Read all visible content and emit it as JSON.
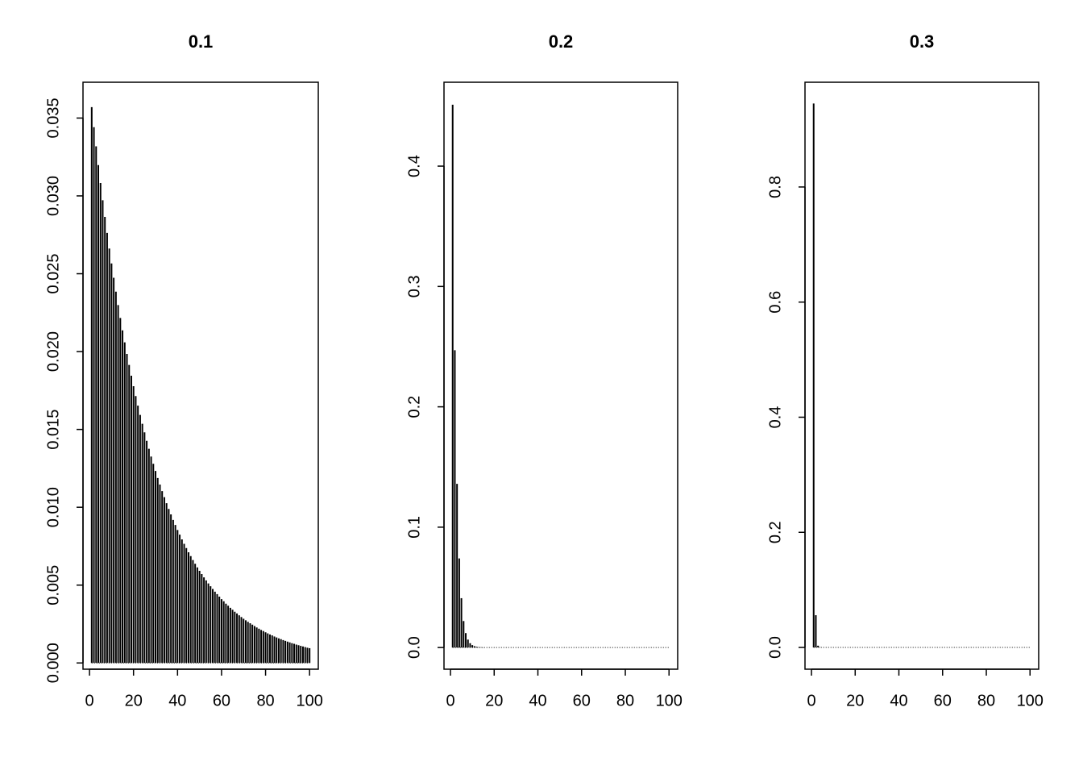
{
  "chart_data": [
    {
      "type": "bar",
      "title": "0.1",
      "color": "#000000",
      "x": [
        1,
        2,
        3,
        4,
        5,
        6,
        7,
        8,
        9,
        10,
        11,
        12,
        13,
        14,
        15,
        16,
        17,
        18,
        19,
        20,
        21,
        22,
        23,
        24,
        25,
        26,
        27,
        28,
        29,
        30,
        31,
        32,
        33,
        34,
        35,
        36,
        37,
        38,
        39,
        40,
        41,
        42,
        43,
        44,
        45,
        46,
        47,
        48,
        49,
        50,
        51,
        52,
        53,
        54,
        55,
        56,
        57,
        58,
        59,
        60,
        61,
        62,
        63,
        64,
        65,
        66,
        67,
        68,
        69,
        70,
        71,
        72,
        73,
        74,
        75,
        76,
        77,
        78,
        79,
        80,
        81,
        82,
        83,
        84,
        85,
        86,
        87,
        88,
        89,
        90,
        91,
        92,
        93,
        94,
        95,
        96,
        97,
        98,
        99,
        100
      ],
      "values": [
        0.0357,
        0.03441,
        0.03318,
        0.03198,
        0.03083,
        0.02972,
        0.02865,
        0.02762,
        0.02662,
        0.02566,
        0.02474,
        0.02385,
        0.02299,
        0.02216,
        0.02136,
        0.02059,
        0.01985,
        0.01914,
        0.01845,
        0.01778,
        0.01714,
        0.01653,
        0.01593,
        0.01536,
        0.01481,
        0.01427,
        0.01376,
        0.01326,
        0.01279,
        0.01233,
        0.01188,
        0.01146,
        0.01104,
        0.01065,
        0.01026,
        0.00989,
        0.00954,
        0.00919,
        0.00886,
        0.00854,
        0.00824,
        0.00794,
        0.00765,
        0.00738,
        0.00711,
        0.00686,
        0.00661,
        0.00637,
        0.00614,
        0.00592,
        0.00571,
        0.0055,
        0.0053,
        0.00511,
        0.00493,
        0.00475,
        0.00458,
        0.00442,
        0.00426,
        0.0041,
        0.00396,
        0.00381,
        0.00368,
        0.00354,
        0.00342,
        0.00329,
        0.00318,
        0.00306,
        0.00295,
        0.00284,
        0.00274,
        0.00264,
        0.00255,
        0.00246,
        0.00237,
        0.00228,
        0.0022,
        0.00212,
        0.00205,
        0.00197,
        0.0019,
        0.00183,
        0.00177,
        0.0017,
        0.00164,
        0.00158,
        0.00153,
        0.00147,
        0.00142,
        0.00137,
        0.00132,
        0.00127,
        0.00123,
        0.00118,
        0.00114,
        0.0011,
        0.00106,
        0.00102,
        0.00098,
        0.00095
      ],
      "xlim": [
        -2.96,
        103.96
      ],
      "ylim": [
        -0.0004,
        0.0373
      ],
      "xticks": [
        0,
        20,
        40,
        60,
        80,
        100
      ],
      "yticks": [
        {
          "value": 0,
          "label": "0.000"
        },
        0.005,
        {
          "value": 0.01,
          "label": "0.010"
        },
        0.015,
        {
          "value": 0.02,
          "label": "0.020"
        },
        0.025,
        {
          "value": 0.03,
          "label": "0.030"
        },
        0.035
      ]
    },
    {
      "type": "bar",
      "title": "0.2",
      "color": "#000000",
      "x": [
        1,
        2,
        3,
        4,
        5,
        6,
        7,
        8,
        9,
        10,
        11,
        12,
        13,
        14,
        15,
        16,
        17,
        18,
        19,
        20,
        21,
        22,
        23,
        24,
        25,
        26,
        27,
        28,
        29,
        30,
        31,
        32,
        33,
        34,
        35,
        36,
        37,
        38,
        39,
        40,
        41,
        42,
        43,
        44,
        45,
        46,
        47,
        48,
        49,
        50,
        51,
        52,
        53,
        54,
        55,
        56,
        57,
        58,
        59,
        60,
        61,
        62,
        63,
        64,
        65,
        66,
        67,
        68,
        69,
        70,
        71,
        72,
        73,
        74,
        75,
        76,
        77,
        78,
        79,
        80,
        81,
        82,
        83,
        84,
        85,
        86,
        87,
        88,
        89,
        90,
        91,
        92,
        93,
        94,
        95,
        96,
        97,
        98,
        99,
        100
      ],
      "values": [
        0.451,
        0.247,
        0.136,
        0.074,
        0.041,
        0.022,
        0.012,
        0.0066,
        0.0036,
        0.002,
        0.0011,
        0.0006,
        0.0003,
        0.0002,
        0.0001,
        0,
        0,
        0,
        0,
        0,
        0,
        0,
        0,
        0,
        0,
        0,
        0,
        0,
        0,
        0,
        0,
        0,
        0,
        0,
        0,
        0,
        0,
        0,
        0,
        0,
        0,
        0,
        0,
        0,
        0,
        0,
        0,
        0,
        0,
        0,
        0,
        0,
        0,
        0,
        0,
        0,
        0,
        0,
        0,
        0,
        0,
        0,
        0,
        0,
        0,
        0,
        0,
        0,
        0,
        0,
        0,
        0,
        0,
        0,
        0,
        0,
        0,
        0,
        0,
        0,
        0,
        0,
        0,
        0,
        0,
        0,
        0,
        0,
        0,
        0,
        0,
        0,
        0,
        0,
        0,
        0,
        0,
        0,
        0,
        0
      ],
      "xlim": [
        -2.96,
        103.96
      ],
      "ylim": [
        -0.018,
        0.4697
      ],
      "xticks": [
        0,
        20,
        40,
        60,
        80,
        100
      ],
      "yticks": [
        {
          "value": 0,
          "label": "0.0"
        },
        0.1,
        0.2,
        0.3,
        0.4
      ]
    },
    {
      "type": "bar",
      "title": "0.3",
      "color": "#000000",
      "x": [
        1,
        2,
        3,
        4,
        5,
        6,
        7,
        8,
        9,
        10,
        11,
        12,
        13,
        14,
        15,
        16,
        17,
        18,
        19,
        20,
        21,
        22,
        23,
        24,
        25,
        26,
        27,
        28,
        29,
        30,
        31,
        32,
        33,
        34,
        35,
        36,
        37,
        38,
        39,
        40,
        41,
        42,
        43,
        44,
        45,
        46,
        47,
        48,
        49,
        50,
        51,
        52,
        53,
        54,
        55,
        56,
        57,
        58,
        59,
        60,
        61,
        62,
        63,
        64,
        65,
        66,
        67,
        68,
        69,
        70,
        71,
        72,
        73,
        74,
        75,
        76,
        77,
        78,
        79,
        80,
        81,
        82,
        83,
        84,
        85,
        86,
        87,
        88,
        89,
        90,
        91,
        92,
        93,
        94,
        95,
        96,
        97,
        98,
        99,
        100
      ],
      "values": [
        0.945,
        0.056,
        0.003,
        0.0002,
        0,
        0,
        0,
        0,
        0,
        0,
        0,
        0,
        0,
        0,
        0,
        0,
        0,
        0,
        0,
        0,
        0,
        0,
        0,
        0,
        0,
        0,
        0,
        0,
        0,
        0,
        0,
        0,
        0,
        0,
        0,
        0,
        0,
        0,
        0,
        0,
        0,
        0,
        0,
        0,
        0,
        0,
        0,
        0,
        0,
        0,
        0,
        0,
        0,
        0,
        0,
        0,
        0,
        0,
        0,
        0,
        0,
        0,
        0,
        0,
        0,
        0,
        0,
        0,
        0,
        0,
        0,
        0,
        0,
        0,
        0,
        0,
        0,
        0,
        0,
        0,
        0,
        0,
        0,
        0,
        0,
        0,
        0,
        0,
        0,
        0,
        0,
        0,
        0,
        0,
        0,
        0,
        0,
        0,
        0,
        0
      ],
      "xlim": [
        -2.96,
        103.96
      ],
      "ylim": [
        -0.0378,
        0.982
      ],
      "xticks": [
        0,
        20,
        40,
        60,
        80,
        100
      ],
      "yticks": [
        {
          "value": 0,
          "label": "0.0"
        },
        0.2,
        0.4,
        0.6,
        0.8
      ]
    }
  ]
}
